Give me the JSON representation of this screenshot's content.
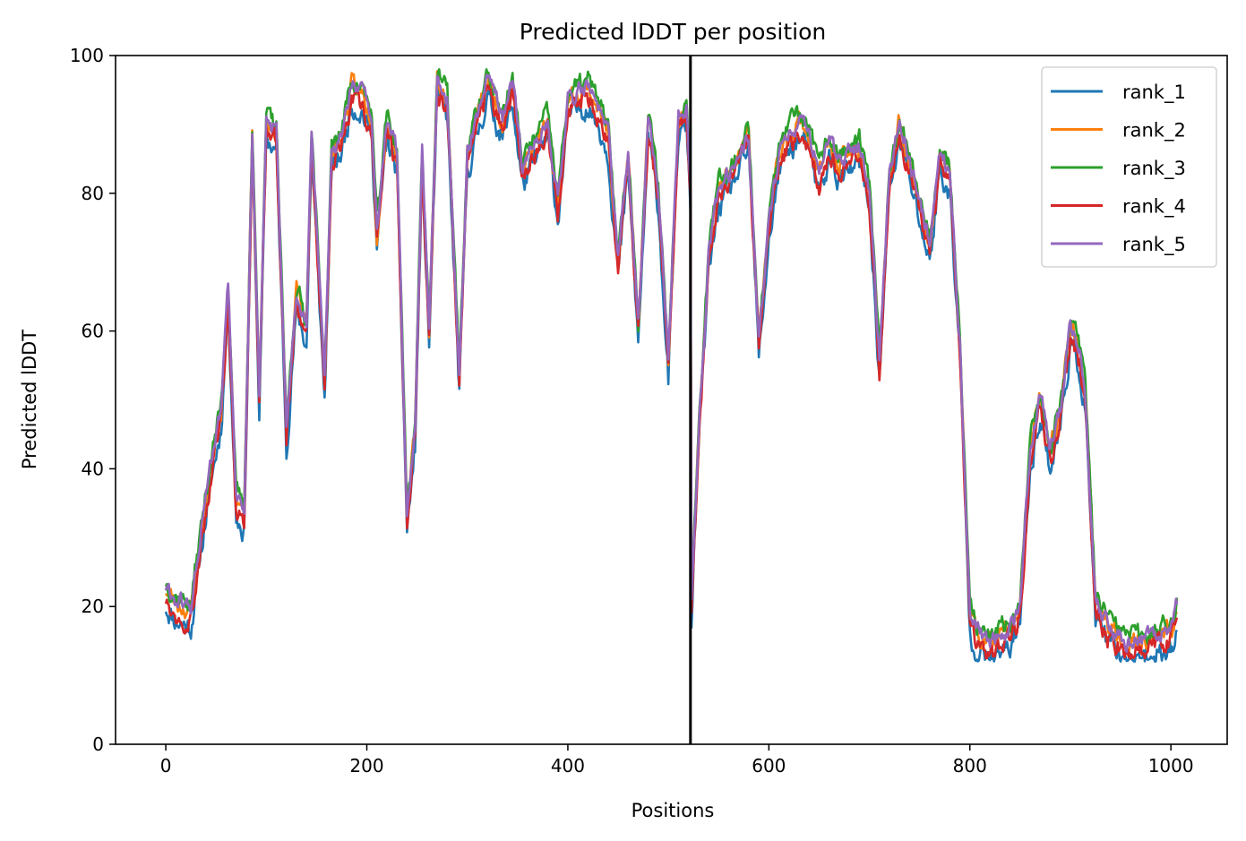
{
  "chart_data": {
    "type": "line",
    "title": "Predicted lDDT per position",
    "xlabel": "Positions",
    "ylabel": "Predicted lDDT",
    "xlim": [
      -50,
      1056
    ],
    "ylim": [
      0,
      100
    ],
    "xticks": [
      0,
      200,
      400,
      600,
      800,
      1000
    ],
    "yticks": [
      0,
      20,
      40,
      60,
      80,
      100
    ],
    "grid": false,
    "legend_position": "top-right",
    "vline_x": 522,
    "colors": {
      "rank_1": "#1f77b4",
      "rank_2": "#ff7f0e",
      "rank_3": "#2ca02c",
      "rank_4": "#d62728",
      "rank_5": "#9467bd",
      "vline": "#000000"
    },
    "base_profile": [
      [
        0,
        22
      ],
      [
        10,
        20
      ],
      [
        25,
        19
      ],
      [
        35,
        30
      ],
      [
        45,
        40
      ],
      [
        55,
        48
      ],
      [
        62,
        66
      ],
      [
        70,
        35
      ],
      [
        78,
        33
      ],
      [
        86,
        88
      ],
      [
        93,
        50
      ],
      [
        100,
        90
      ],
      [
        110,
        88
      ],
      [
        120,
        45
      ],
      [
        130,
        65
      ],
      [
        140,
        60
      ],
      [
        145,
        88
      ],
      [
        158,
        52
      ],
      [
        165,
        85
      ],
      [
        175,
        88
      ],
      [
        185,
        95
      ],
      [
        195,
        94
      ],
      [
        205,
        90
      ],
      [
        210,
        74
      ],
      [
        220,
        90
      ],
      [
        230,
        85
      ],
      [
        240,
        33
      ],
      [
        248,
        45
      ],
      [
        255,
        85
      ],
      [
        262,
        60
      ],
      [
        270,
        96
      ],
      [
        280,
        93
      ],
      [
        292,
        53
      ],
      [
        300,
        85
      ],
      [
        320,
        96
      ],
      [
        335,
        90
      ],
      [
        345,
        95
      ],
      [
        355,
        83
      ],
      [
        365,
        86
      ],
      [
        380,
        90
      ],
      [
        390,
        78
      ],
      [
        400,
        93
      ],
      [
        420,
        95
      ],
      [
        430,
        92
      ],
      [
        440,
        88
      ],
      [
        450,
        70
      ],
      [
        460,
        85
      ],
      [
        470,
        60
      ],
      [
        480,
        90
      ],
      [
        490,
        80
      ],
      [
        500,
        55
      ],
      [
        510,
        90
      ],
      [
        518,
        92
      ],
      [
        522,
        80
      ],
      [
        523,
        20
      ],
      [
        530,
        45
      ],
      [
        540,
        70
      ],
      [
        550,
        80
      ],
      [
        560,
        82
      ],
      [
        570,
        85
      ],
      [
        580,
        88
      ],
      [
        590,
        58
      ],
      [
        600,
        75
      ],
      [
        610,
        85
      ],
      [
        620,
        88
      ],
      [
        630,
        90
      ],
      [
        640,
        88
      ],
      [
        650,
        82
      ],
      [
        660,
        87
      ],
      [
        670,
        84
      ],
      [
        680,
        85
      ],
      [
        690,
        86
      ],
      [
        700,
        80
      ],
      [
        710,
        55
      ],
      [
        720,
        82
      ],
      [
        730,
        90
      ],
      [
        740,
        84
      ],
      [
        750,
        78
      ],
      [
        760,
        72
      ],
      [
        770,
        85
      ],
      [
        780,
        82
      ],
      [
        790,
        58
      ],
      [
        800,
        18
      ],
      [
        810,
        15
      ],
      [
        820,
        14
      ],
      [
        830,
        15
      ],
      [
        840,
        16
      ],
      [
        850,
        20
      ],
      [
        860,
        42
      ],
      [
        870,
        50
      ],
      [
        880,
        42
      ],
      [
        890,
        48
      ],
      [
        900,
        60
      ],
      [
        910,
        56
      ],
      [
        915,
        50
      ],
      [
        925,
        20
      ],
      [
        940,
        16
      ],
      [
        960,
        14
      ],
      [
        980,
        15
      ],
      [
        1000,
        16
      ],
      [
        1007,
        20
      ]
    ],
    "series": [
      {
        "name": "rank_1",
        "length": 1007,
        "offset": -2.0,
        "seed": 11,
        "noise": 3.5
      },
      {
        "name": "rank_2",
        "length": 1007,
        "offset": 0.5,
        "seed": 23,
        "noise": 3.0
      },
      {
        "name": "rank_3",
        "length": 1007,
        "offset": 1.5,
        "seed": 37,
        "noise": 3.0
      },
      {
        "name": "rank_4",
        "length": 1007,
        "offset": -1.0,
        "seed": 49,
        "noise": 3.0
      },
      {
        "name": "rank_5",
        "length": 1007,
        "offset": 0.8,
        "seed": 61,
        "noise": 2.5
      }
    ]
  }
}
